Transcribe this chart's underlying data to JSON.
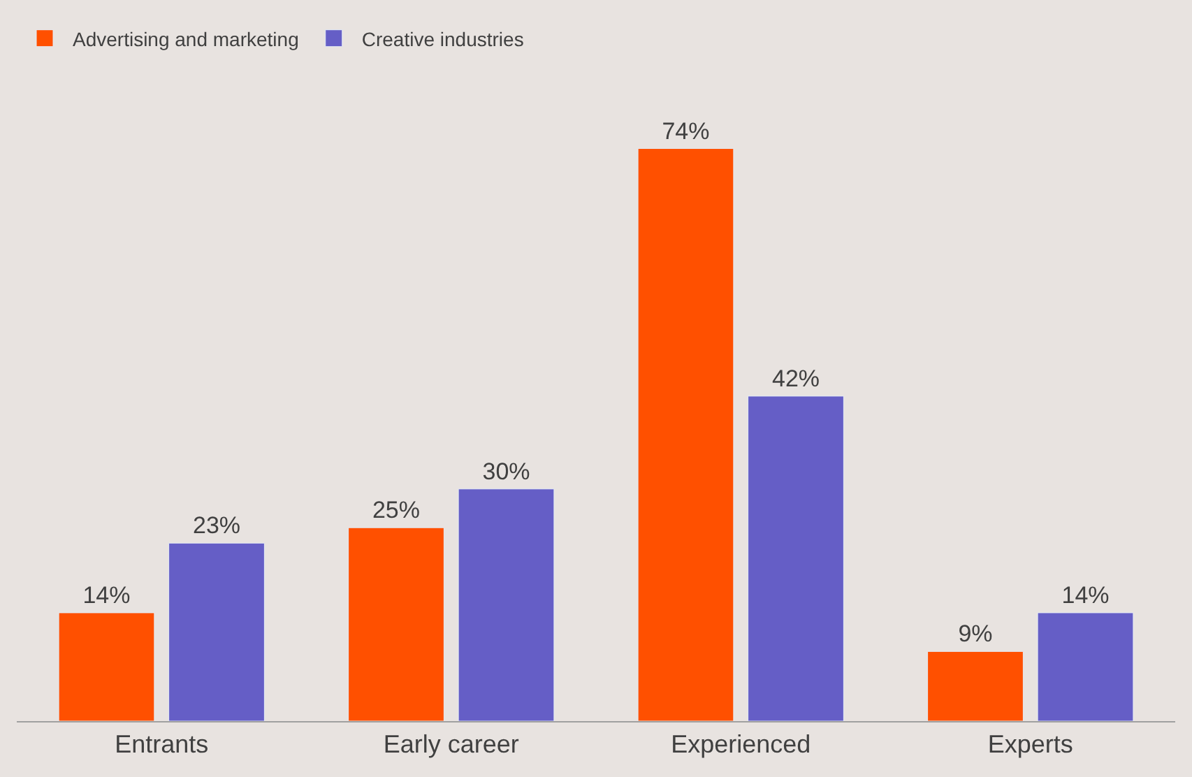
{
  "chart_data": {
    "type": "bar",
    "categories": [
      "Entrants",
      "Early career",
      "Experienced",
      "Experts"
    ],
    "series": [
      {
        "name": "Advertising and marketing",
        "color": "#ff5000",
        "values": [
          14,
          25,
          74,
          9
        ],
        "value_labels": [
          "14%",
          "25%",
          "74%",
          "9%"
        ]
      },
      {
        "name": "Creative industries",
        "color": "#655ec6",
        "values": [
          23,
          30,
          42,
          14
        ],
        "value_labels": [
          "23%",
          "30%",
          "42%",
          "14%"
        ]
      }
    ],
    "legend": "top left",
    "grid": false
  }
}
